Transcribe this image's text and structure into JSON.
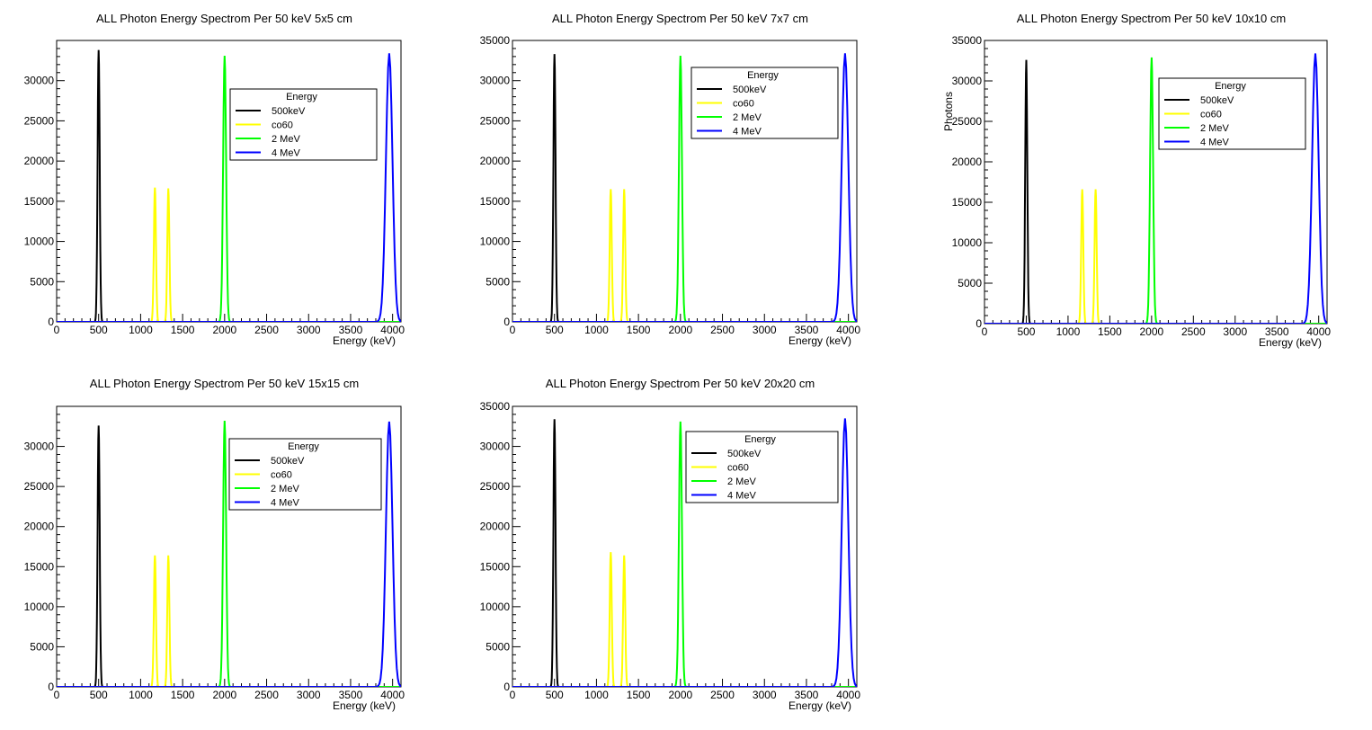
{
  "series_defs": [
    {
      "name": "500keV",
      "color": "#000000",
      "peaks": [
        500
      ],
      "width": 35
    },
    {
      "name": "co60",
      "color": "#ffff00",
      "peaks": [
        1170,
        1330
      ],
      "width": 35
    },
    {
      "name": "2 MeV",
      "color": "#00ff00",
      "peaks": [
        2000
      ],
      "width": 50
    },
    {
      "name": "4 MeV",
      "color": "#0000ff",
      "peaks": [
        3960
      ],
      "width": 110
    }
  ],
  "chart_data": [
    {
      "type": "line",
      "title": "ALL Photon Energy Spectrom Per 50 keV 5x5 cm",
      "xlabel": "Energy (keV)",
      "ylabel": "",
      "xlim": [
        0,
        4100
      ],
      "ylim": [
        0,
        35000
      ],
      "y_top_label_shown": false,
      "legend_title": "Energy",
      "legend_position": "upper-middle-right",
      "peak_heights": {
        "500keV": [
          33800
        ],
        "co60": [
          16700,
          16600
        ],
        "2 MeV": [
          33100
        ],
        "4 MeV": [
          33400
        ]
      },
      "x_ticks": [
        0,
        500,
        1000,
        1500,
        2000,
        2500,
        3000,
        3500,
        4000
      ],
      "y_ticks": [
        0,
        5000,
        10000,
        15000,
        20000,
        25000,
        30000
      ]
    },
    {
      "type": "line",
      "title": "ALL Photon Energy Spectrom Per 50 keV 7x7 cm",
      "xlabel": "Energy (keV)",
      "ylabel": "",
      "xlim": [
        0,
        4100
      ],
      "ylim": [
        0,
        35000
      ],
      "y_top_label_shown": true,
      "legend_title": "Energy",
      "legend_position": "upper-right",
      "peak_heights": {
        "500keV": [
          33300
        ],
        "co60": [
          16500,
          16500
        ],
        "2 MeV": [
          33100
        ],
        "4 MeV": [
          33400
        ]
      },
      "x_ticks": [
        0,
        500,
        1000,
        1500,
        2000,
        2500,
        3000,
        3500,
        4000
      ],
      "y_ticks": [
        0,
        5000,
        10000,
        15000,
        20000,
        25000,
        30000,
        35000
      ]
    },
    {
      "type": "line",
      "title": "ALL Photon Energy Spectrom Per 50 keV 10x10 cm",
      "xlabel": "Energy (keV)",
      "ylabel": "Photons",
      "xlim": [
        0,
        4100
      ],
      "ylim": [
        0,
        35000
      ],
      "y_top_label_shown": true,
      "legend_title": "Energy",
      "legend_position": "upper-right",
      "peak_heights": {
        "500keV": [
          32600
        ],
        "co60": [
          16600,
          16600
        ],
        "2 MeV": [
          32900
        ],
        "4 MeV": [
          33400
        ]
      },
      "x_ticks": [
        0,
        500,
        1000,
        1500,
        2000,
        2500,
        3000,
        3500,
        4000
      ],
      "y_ticks": [
        0,
        5000,
        10000,
        15000,
        20000,
        25000,
        30000,
        35000
      ]
    },
    {
      "type": "line",
      "title": "ALL Photon Energy Spectrom Per 50 keV 15x15 cm",
      "xlabel": "Energy (keV)",
      "ylabel": "",
      "xlim": [
        0,
        4100
      ],
      "ylim": [
        0,
        35000
      ],
      "y_top_label_shown": false,
      "legend_title": "Energy",
      "legend_position": "upper-middle-right",
      "peak_heights": {
        "500keV": [
          32600
        ],
        "co60": [
          16400,
          16400
        ],
        "2 MeV": [
          33200
        ],
        "4 MeV": [
          33100
        ]
      },
      "x_ticks": [
        0,
        500,
        1000,
        1500,
        2000,
        2500,
        3000,
        3500,
        4000
      ],
      "y_ticks": [
        0,
        5000,
        10000,
        15000,
        20000,
        25000,
        30000
      ]
    },
    {
      "type": "line",
      "title": "ALL Photon Energy Spectrom Per 50 keV 20x20 cm",
      "xlabel": "Energy (keV)",
      "ylabel": "",
      "xlim": [
        0,
        4100
      ],
      "ylim": [
        0,
        35000
      ],
      "y_top_label_shown": true,
      "legend_title": "Energy",
      "legend_position": "upper-middle-right",
      "peak_heights": {
        "500keV": [
          33400
        ],
        "co60": [
          16800,
          16400
        ],
        "2 MeV": [
          33100
        ],
        "4 MeV": [
          33500
        ]
      },
      "x_ticks": [
        0,
        500,
        1000,
        1500,
        2000,
        2500,
        3000,
        3500,
        4000
      ],
      "y_ticks": [
        0,
        5000,
        10000,
        15000,
        20000,
        25000,
        30000,
        35000
      ]
    }
  ]
}
